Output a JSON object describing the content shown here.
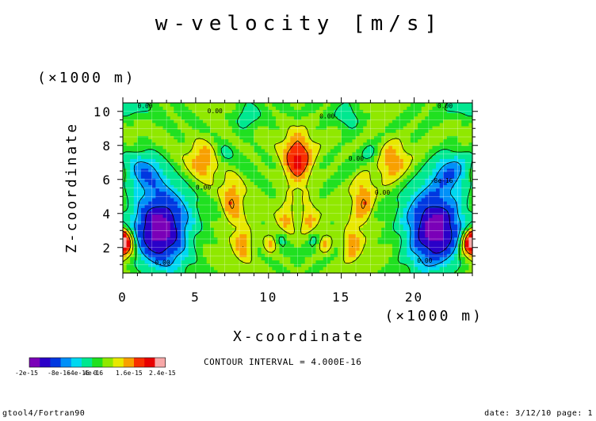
{
  "chart_data": {
    "type": "heatmap",
    "title": "w-velocity [m/s]",
    "xlabel": "X-coordinate",
    "ylabel": "Z-coordinate",
    "x_unit": "(×1000 m)",
    "y_unit": "(×1000 m)",
    "xlim": [
      0,
      24
    ],
    "ylim": [
      0.5,
      10.5
    ],
    "x_ticks": [
      0,
      5,
      10,
      15,
      20
    ],
    "y_ticks": [
      2,
      4,
      6,
      8,
      10
    ],
    "x_tick_labels": [
      "0",
      "5",
      "10",
      "15",
      "20"
    ],
    "y_tick_labels": [
      "2",
      "4",
      "6",
      "8",
      "10"
    ],
    "grid": true,
    "contour_interval_text": "CONTOUR INTERVAL = 4.000E-16",
    "contour_labels": [
      {
        "x": 1.0,
        "z": 10.2,
        "text": "0.00"
      },
      {
        "x": 5.8,
        "z": 9.9,
        "text": "0.00"
      },
      {
        "x": 13.5,
        "z": 9.6,
        "text": "0.00"
      },
      {
        "x": 21.6,
        "z": 10.2,
        "text": "0.00"
      },
      {
        "x": 15.5,
        "z": 7.1,
        "text": "0.00"
      },
      {
        "x": 5.0,
        "z": 5.4,
        "text": "0.00"
      },
      {
        "x": 17.3,
        "z": 5.1,
        "text": "0.00"
      },
      {
        "x": 21.1,
        "z": 5.8,
        "text": "-8e-16"
      },
      {
        "x": 2.2,
        "z": 1.0,
        "text": "0.00"
      },
      {
        "x": 20.2,
        "z": 1.1,
        "text": "0.00"
      }
    ],
    "colorbar": {
      "colors": [
        "#7b00b8",
        "#2a00c8",
        "#0038e0",
        "#0090f8",
        "#00d8f0",
        "#00e890",
        "#20e020",
        "#90e800",
        "#e8e800",
        "#f8a000",
        "#f83000",
        "#e80000",
        "#f8a8a8"
      ],
      "labels": [
        "-2e-15",
        "-8e-16",
        "4e-16",
        "1.6e-15",
        "2.4e-15"
      ],
      "overlap_text": "-4e-16 0"
    }
  },
  "footer": {
    "left": "gtool4/Fortran90",
    "right": "date: 3/12/10 page: 1"
  }
}
